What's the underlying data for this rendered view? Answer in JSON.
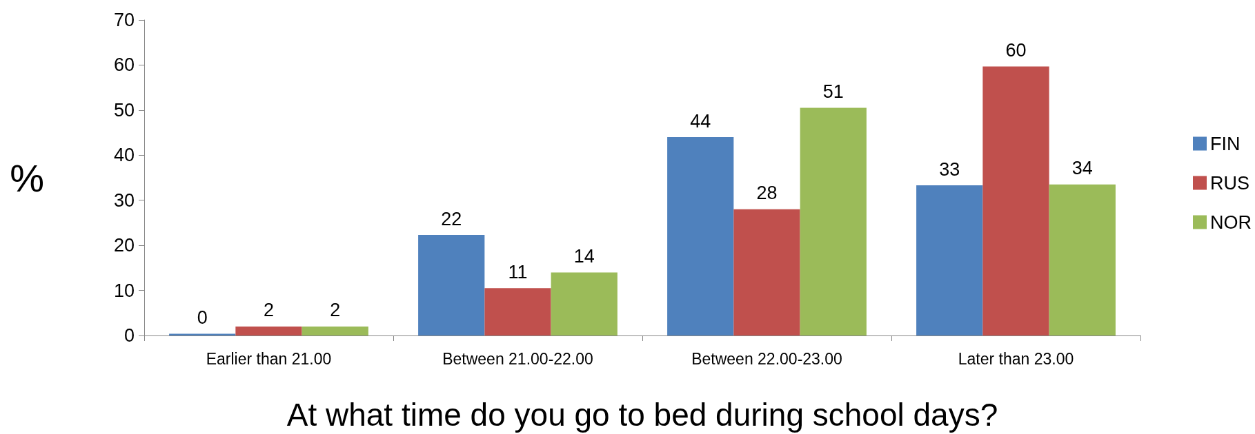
{
  "chart_data": {
    "type": "bar",
    "xlabel": "At what time do you go to bed during school days?",
    "ylabel": "%",
    "categories": [
      "Earlier than 21.00",
      "Between 21.00-22.00",
      "Between 22.00-23.00",
      "Later than 23.00"
    ],
    "series": [
      {
        "name": "FIN",
        "color": "#4f81bd",
        "values": [
          0.4,
          22.3,
          44,
          33.3
        ],
        "value_labels": [
          "0",
          "22",
          "44",
          "33"
        ]
      },
      {
        "name": "RUS",
        "color": "#c0504d",
        "values": [
          2,
          10.5,
          28,
          59.7
        ],
        "value_labels": [
          "2",
          "11",
          "28",
          "60"
        ]
      },
      {
        "name": "NOR",
        "color": "#9bbb59",
        "values": [
          2,
          14,
          50.5,
          33.5
        ],
        "value_labels": [
          "2",
          "14",
          "51",
          "34"
        ]
      }
    ],
    "ylim": [
      0,
      70
    ],
    "yticks": [
      0,
      10,
      20,
      30,
      40,
      50,
      60,
      70
    ],
    "grid": false,
    "legend": "right"
  }
}
